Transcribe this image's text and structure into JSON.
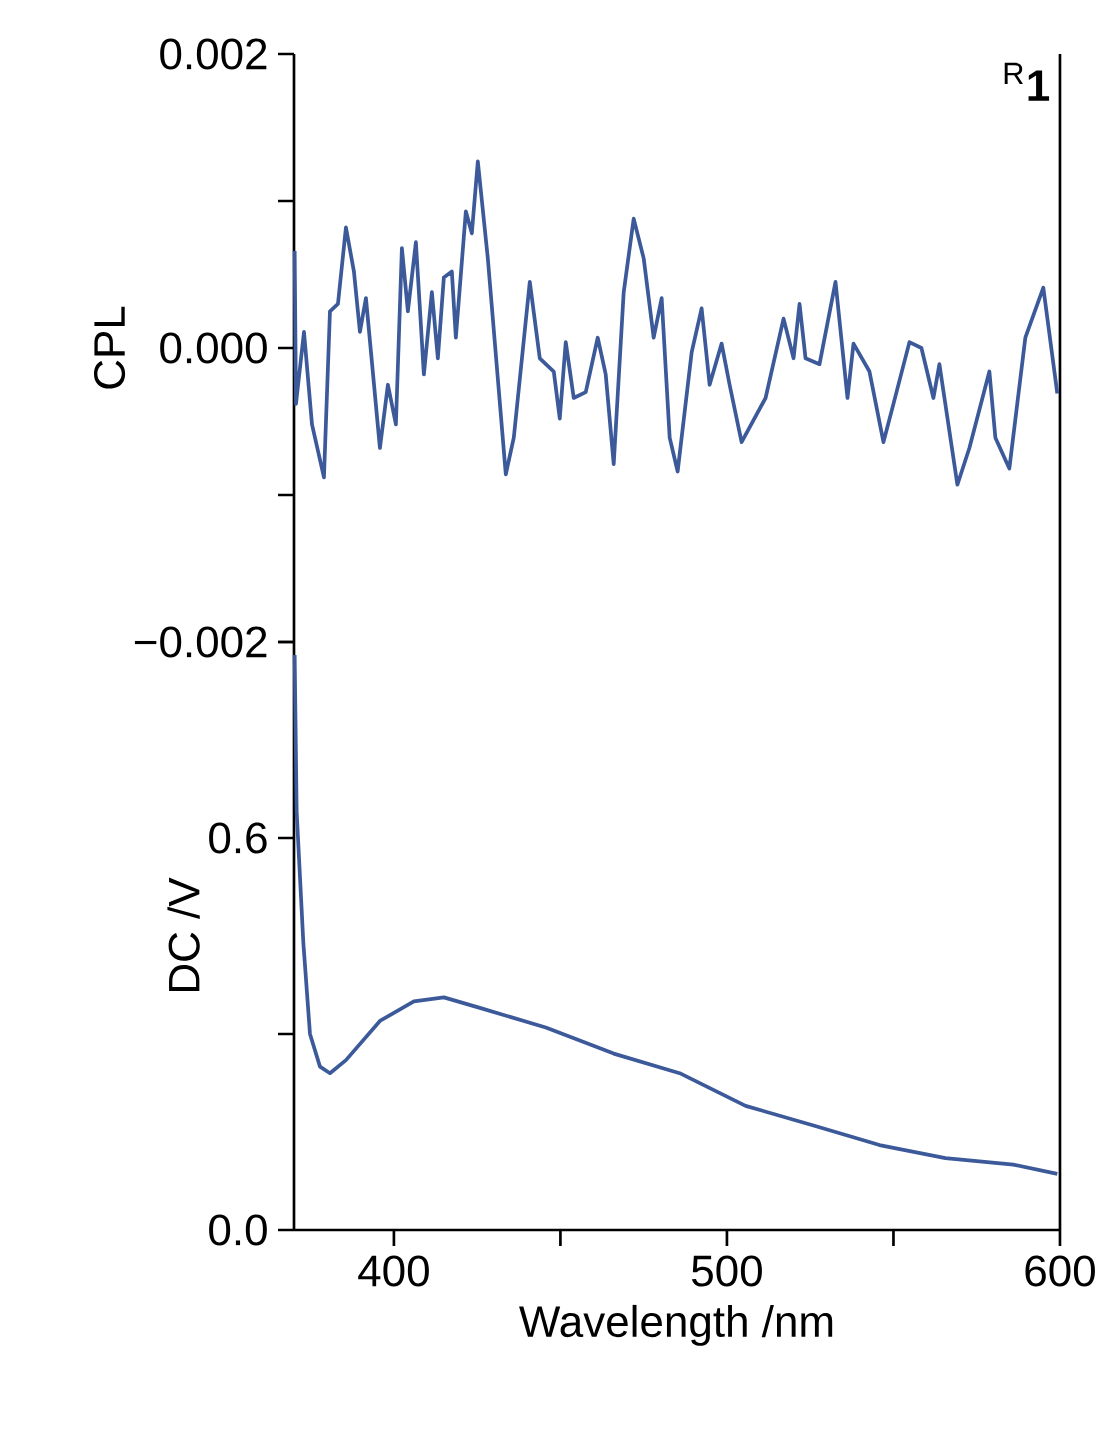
{
  "chart_data": [
    {
      "type": "line",
      "ylabel": "CPL",
      "color": "#3c5a9a",
      "xlim": [
        370,
        600
      ],
      "ylim": [
        -0.002,
        0.002
      ],
      "tick_labels": "y",
      "yticks": [
        {
          "value": -0.002,
          "label": "−0.002"
        },
        {
          "value": -0.001,
          "label": null
        },
        {
          "value": 0,
          "label": "0.000"
        },
        {
          "value": 0.001,
          "label": null
        },
        {
          "value": 0.002,
          "label": "0.002"
        }
      ],
      "annotations": [
        "$^{R}$**1**"
      ],
      "x": [
        370.2,
        370.6,
        373,
        375.4,
        379,
        380.8,
        383.2,
        385.6,
        388,
        389.8,
        391.6,
        395.8,
        398.2,
        400.6,
        402.4,
        404.2,
        406.6,
        409,
        411.4,
        413.2,
        415,
        417.4,
        418.6,
        421.6,
        423.4,
        425.2,
        428.2,
        433.6,
        436,
        440.8,
        443.8,
        448,
        449.8,
        451.6,
        454,
        457.6,
        461.2,
        463.6,
        466,
        469,
        472,
        475,
        478,
        480.4,
        482.8,
        485.2,
        489.4,
        492.4,
        494.8,
        498.4,
        500.8,
        504.4,
        511.6,
        517,
        520,
        521.8,
        523.6,
        527.8,
        532.6,
        536.2,
        538,
        542.8,
        547,
        550,
        554.8,
        558.4,
        562,
        563.8,
        569.2,
        572.8,
        578.8,
        580.6,
        584.8,
        589.6,
        595,
        599.2
      ],
      "values": [
        0.00066,
        -0.00038,
        0.00011,
        -0.00052,
        -0.00088,
        0.00025,
        0.0003,
        0.00082,
        0.00052,
        0.00011,
        0.00034,
        -0.00068,
        -0.00025,
        -0.00052,
        0.00068,
        0.00025,
        0.00072,
        -0.00018,
        0.00038,
        -7e-05,
        0.00048,
        0.00052,
        7e-05,
        0.00093,
        0.00078,
        0.00127,
        0.00061,
        -0.00086,
        -0.00061,
        0.00045,
        -7e-05,
        -0.00016,
        -0.00048,
        4e-05,
        -0.00034,
        -0.0003,
        7e-05,
        -0.00018,
        -0.00079,
        0.00038,
        0.00088,
        0.00061,
        7e-05,
        0.00034,
        -0.00061,
        -0.00084,
        -3e-05,
        0.00027,
        -0.00025,
        3e-05,
        -0.00025,
        -0.00064,
        -0.00034,
        0.0002,
        -7e-05,
        0.0003,
        -7e-05,
        -0.00011,
        0.00045,
        -0.00034,
        3e-05,
        -0.00016,
        -0.00064,
        -0.00038,
        4e-05,
        0,
        -0.00034,
        -0.00011,
        -0.00093,
        -0.00068,
        -0.00016,
        -0.00061,
        -0.00082,
        7e-05,
        0.00041,
        -0.00031
      ]
    },
    {
      "type": "line",
      "ylabel": "DC /V",
      "xlabel": "Wavelength /nm",
      "color": "#3c5a9a",
      "xlim": [
        370,
        600
      ],
      "ylim": [
        0,
        0.9
      ],
      "xticks": [
        400,
        {
          "value": 450,
          "label": null
        },
        500,
        {
          "value": 550,
          "label": null
        },
        600
      ],
      "yticks": [
        {
          "value": 0,
          "label": "0.0"
        },
        {
          "value": 0.3,
          "label": null
        },
        {
          "value": 0.6,
          "label": "0.6"
        },
        {
          "value": 0.9,
          "label": null
        }
      ],
      "x": [
        370.2,
        370.8,
        372.8,
        374.8,
        377.8,
        380.8,
        385.6,
        395.8,
        406,
        415,
        425.8,
        445.6,
        466,
        485.8,
        505.6,
        526,
        545.8,
        565.6,
        586,
        599.2
      ],
      "values": [
        0.88,
        0.64,
        0.44,
        0.3,
        0.25,
        0.24,
        0.26,
        0.32,
        0.35,
        0.356,
        0.34,
        0.31,
        0.27,
        0.24,
        0.19,
        0.16,
        0.13,
        0.11,
        0.1,
        0.086
      ]
    }
  ]
}
